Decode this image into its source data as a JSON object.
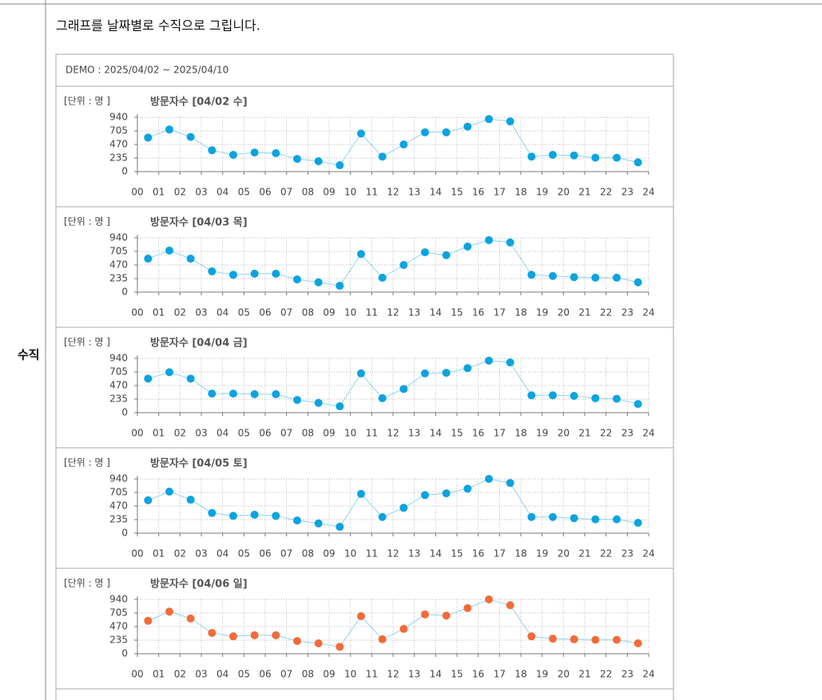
{
  "page": {
    "row_label": "수직",
    "description": "그래프를 날짜별로 수직으로 그립니다.",
    "demo_header": "DEMO : 2025/04/02 ~ 2025/04/10"
  },
  "chart_data": [
    {
      "type": "line",
      "unit_label": "[단위 : 명 ]",
      "title": "방문자수 [04/02 수]",
      "x": [
        0.5,
        1.5,
        2.5,
        3.5,
        4.5,
        5.5,
        6.5,
        7.5,
        8.5,
        9.5,
        10.5,
        11.5,
        12.5,
        13.5,
        14.5,
        15.5,
        16.5,
        17.5,
        18.5,
        19.5,
        20.5,
        21.5,
        22.5,
        23.5
      ],
      "series": [
        {
          "color": "#0aa3e0",
          "line_color": "#8fd3f0",
          "values": [
            590,
            730,
            600,
            370,
            290,
            330,
            320,
            220,
            180,
            110,
            660,
            260,
            470,
            680,
            680,
            780,
            910,
            870,
            260,
            290,
            280,
            240,
            240,
            160
          ]
        }
      ],
      "xlim": [
        0,
        24
      ],
      "ylim": [
        0,
        940
      ],
      "yticks": [
        0,
        235,
        470,
        705,
        940
      ],
      "grid": true,
      "xticks": [
        {
          "value": 0,
          "label": "00"
        },
        {
          "value": 1,
          "label": "01"
        },
        {
          "value": 2,
          "label": "02"
        },
        {
          "value": 3,
          "label": "03"
        },
        {
          "value": 4,
          "label": "04"
        },
        {
          "value": 5,
          "label": "05"
        },
        {
          "value": 6,
          "label": "06"
        },
        {
          "value": 7,
          "label": "07"
        },
        {
          "value": 8,
          "label": "08"
        },
        {
          "value": 9,
          "label": "09"
        },
        10,
        11,
        12,
        13,
        14,
        15,
        16,
        17,
        18,
        19,
        20,
        21,
        22,
        23,
        24
      ]
    },
    {
      "type": "line",
      "unit_label": "[단위 : 명 ]",
      "title": "방문자수 [04/03 목]",
      "x": [
        0.5,
        1.5,
        2.5,
        3.5,
        4.5,
        5.5,
        6.5,
        7.5,
        8.5,
        9.5,
        10.5,
        11.5,
        12.5,
        13.5,
        14.5,
        15.5,
        16.5,
        17.5,
        18.5,
        19.5,
        20.5,
        21.5,
        22.5,
        23.5
      ],
      "series": [
        {
          "color": "#0aa3e0",
          "line_color": "#8fd3f0",
          "values": [
            580,
            720,
            580,
            360,
            300,
            320,
            320,
            220,
            170,
            110,
            660,
            250,
            470,
            690,
            640,
            790,
            900,
            860,
            300,
            280,
            260,
            250,
            250,
            170
          ]
        }
      ],
      "xlim": [
        0,
        24
      ],
      "ylim": [
        0,
        940
      ],
      "yticks": [
        0,
        235,
        470,
        705,
        940
      ],
      "grid": true,
      "xticks": [
        {
          "value": 0,
          "label": "00"
        },
        {
          "value": 1,
          "label": "01"
        },
        {
          "value": 2,
          "label": "02"
        },
        {
          "value": 3,
          "label": "03"
        },
        {
          "value": 4,
          "label": "04"
        },
        {
          "value": 5,
          "label": "05"
        },
        {
          "value": 6,
          "label": "06"
        },
        {
          "value": 7,
          "label": "07"
        },
        {
          "value": 8,
          "label": "08"
        },
        {
          "value": 9,
          "label": "09"
        },
        10,
        11,
        12,
        13,
        14,
        15,
        16,
        17,
        18,
        19,
        20,
        21,
        22,
        23,
        24
      ]
    },
    {
      "type": "line",
      "unit_label": "[단위 : 명 ]",
      "title": "방문자수 [04/04 금]",
      "x": [
        0.5,
        1.5,
        2.5,
        3.5,
        4.5,
        5.5,
        6.5,
        7.5,
        8.5,
        9.5,
        10.5,
        11.5,
        12.5,
        13.5,
        14.5,
        15.5,
        16.5,
        17.5,
        18.5,
        19.5,
        20.5,
        21.5,
        22.5,
        23.5
      ],
      "series": [
        {
          "color": "#0aa3e0",
          "line_color": "#8fd3f0",
          "values": [
            590,
            700,
            590,
            330,
            330,
            320,
            320,
            220,
            170,
            110,
            680,
            250,
            410,
            680,
            690,
            770,
            900,
            870,
            300,
            300,
            290,
            250,
            240,
            150
          ]
        }
      ],
      "xlim": [
        0,
        24
      ],
      "ylim": [
        0,
        940
      ],
      "yticks": [
        0,
        235,
        470,
        705,
        940
      ],
      "grid": true,
      "xticks": [
        {
          "value": 0,
          "label": "00"
        },
        {
          "value": 1,
          "label": "01"
        },
        {
          "value": 2,
          "label": "02"
        },
        {
          "value": 3,
          "label": "03"
        },
        {
          "value": 4,
          "label": "04"
        },
        {
          "value": 5,
          "label": "05"
        },
        {
          "value": 6,
          "label": "06"
        },
        {
          "value": 7,
          "label": "07"
        },
        {
          "value": 8,
          "label": "08"
        },
        {
          "value": 9,
          "label": "09"
        },
        10,
        11,
        12,
        13,
        14,
        15,
        16,
        17,
        18,
        19,
        20,
        21,
        22,
        23,
        24
      ]
    },
    {
      "type": "line",
      "unit_label": "[단위 : 명 ]",
      "title": "방문자수 [04/05 토]",
      "x": [
        0.5,
        1.5,
        2.5,
        3.5,
        4.5,
        5.5,
        6.5,
        7.5,
        8.5,
        9.5,
        10.5,
        11.5,
        12.5,
        13.5,
        14.5,
        15.5,
        16.5,
        17.5,
        18.5,
        19.5,
        20.5,
        21.5,
        22.5,
        23.5
      ],
      "series": [
        {
          "color": "#0aa3e0",
          "line_color": "#8fd3f0",
          "values": [
            570,
            720,
            580,
            350,
            300,
            320,
            300,
            220,
            170,
            110,
            680,
            280,
            440,
            660,
            690,
            770,
            940,
            870,
            280,
            280,
            260,
            240,
            240,
            180
          ]
        }
      ],
      "xlim": [
        0,
        24
      ],
      "ylim": [
        0,
        940
      ],
      "yticks": [
        0,
        235,
        470,
        705,
        940
      ],
      "grid": true,
      "xticks": [
        {
          "value": 0,
          "label": "00"
        },
        {
          "value": 1,
          "label": "01"
        },
        {
          "value": 2,
          "label": "02"
        },
        {
          "value": 3,
          "label": "03"
        },
        {
          "value": 4,
          "label": "04"
        },
        {
          "value": 5,
          "label": "05"
        },
        {
          "value": 6,
          "label": "06"
        },
        {
          "value": 7,
          "label": "07"
        },
        {
          "value": 8,
          "label": "08"
        },
        {
          "value": 9,
          "label": "09"
        },
        10,
        11,
        12,
        13,
        14,
        15,
        16,
        17,
        18,
        19,
        20,
        21,
        22,
        23,
        24
      ]
    },
    {
      "type": "line",
      "unit_label": "[단위 : 명 ]",
      "title": "방문자수 [04/06 일]",
      "x": [
        0.5,
        1.5,
        2.5,
        3.5,
        4.5,
        5.5,
        6.5,
        7.5,
        8.5,
        9.5,
        10.5,
        11.5,
        12.5,
        13.5,
        14.5,
        15.5,
        16.5,
        17.5,
        18.5,
        19.5,
        20.5,
        21.5,
        22.5,
        23.5
      ],
      "series": [
        {
          "color": "#f26b38",
          "line_color": "#8fd3f0",
          "values": [
            570,
            730,
            610,
            360,
            300,
            320,
            320,
            220,
            180,
            120,
            650,
            250,
            430,
            680,
            660,
            790,
            940,
            840,
            300,
            260,
            250,
            240,
            240,
            180
          ]
        }
      ],
      "xlim": [
        0,
        24
      ],
      "ylim": [
        0,
        940
      ],
      "yticks": [
        0,
        235,
        470,
        705,
        940
      ],
      "grid": true,
      "xticks": [
        {
          "value": 0,
          "label": "00"
        },
        {
          "value": 1,
          "label": "01"
        },
        {
          "value": 2,
          "label": "02"
        },
        {
          "value": 3,
          "label": "03"
        },
        {
          "value": 4,
          "label": "04"
        },
        {
          "value": 5,
          "label": "05"
        },
        {
          "value": 6,
          "label": "06"
        },
        {
          "value": 7,
          "label": "07"
        },
        {
          "value": 8,
          "label": "08"
        },
        {
          "value": 9,
          "label": "09"
        },
        10,
        11,
        12,
        13,
        14,
        15,
        16,
        17,
        18,
        19,
        20,
        21,
        22,
        23,
        24
      ]
    }
  ]
}
